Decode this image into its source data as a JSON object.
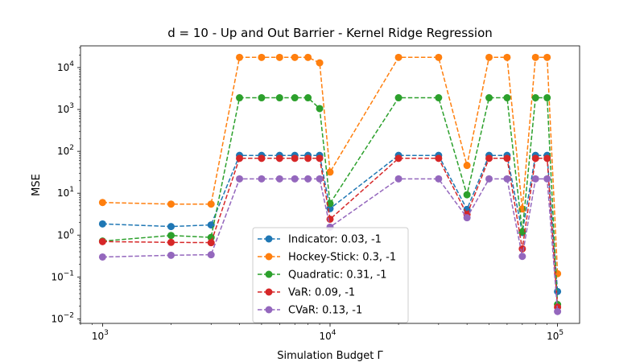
{
  "chart_data": {
    "type": "line",
    "title": "d = 10 - Up and Out Barrier - Kernel Ridge Regression",
    "xlabel": "Simulation Budget Γ",
    "ylabel": "MSE",
    "xscale": "log",
    "yscale": "log",
    "xlim": [
      800,
      125000
    ],
    "ylim": [
      0.0078,
      33000
    ],
    "x_ticks": [
      {
        "value": 1000,
        "base": "10",
        "exp": "3"
      },
      {
        "value": 10000,
        "base": "10",
        "exp": "4"
      },
      {
        "value": 100000,
        "base": "10",
        "exp": "5"
      }
    ],
    "y_ticks": [
      {
        "value": 0.01,
        "base": "10",
        "exp": "−2"
      },
      {
        "value": 0.1,
        "base": "10",
        "exp": "−1"
      },
      {
        "value": 1,
        "base": "10",
        "exp": "0"
      },
      {
        "value": 10,
        "base": "10",
        "exp": "1"
      },
      {
        "value": 100,
        "base": "10",
        "exp": "2"
      },
      {
        "value": 1000,
        "base": "10",
        "exp": "3"
      },
      {
        "value": 10000,
        "base": "10",
        "exp": "4"
      }
    ],
    "grid": false,
    "legend_position": "bottom-center",
    "x": [
      1000,
      2000,
      3000,
      4000,
      5000,
      6000,
      7000,
      8000,
      9000,
      10000,
      20000,
      30000,
      40000,
      50000,
      60000,
      70000,
      80000,
      90000,
      100000
    ],
    "series": [
      {
        "name": "Indicator: 0.03, -1",
        "color": "#1f77b4",
        "values": [
          1.85,
          1.6,
          1.75,
          80,
          80,
          80,
          80,
          80,
          80,
          4.3,
          80,
          80,
          4.1,
          80,
          80,
          1.15,
          80,
          80,
          0.045
        ]
      },
      {
        "name": "Hockey-Stick: 0.3, -1",
        "color": "#ff7f0e",
        "values": [
          6.0,
          5.5,
          5.5,
          17500,
          17500,
          17500,
          17500,
          17500,
          13000,
          32,
          17500,
          17500,
          46,
          17500,
          17500,
          4.2,
          17500,
          17500,
          0.12
        ]
      },
      {
        "name": "Quadratic: 0.31, -1",
        "color": "#2ca02c",
        "values": [
          0.72,
          0.98,
          0.88,
          1900,
          1900,
          1900,
          1900,
          1900,
          1050,
          5.7,
          1900,
          1900,
          9.2,
          1900,
          1900,
          1.2,
          1900,
          1900,
          0.022
        ]
      },
      {
        "name": "VaR: 0.09, -1",
        "color": "#d62728",
        "values": [
          0.7,
          0.67,
          0.66,
          68,
          68,
          68,
          68,
          68,
          68,
          2.4,
          68,
          68,
          3.1,
          68,
          68,
          0.47,
          68,
          68,
          0.019
        ]
      },
      {
        "name": "CVaR: 0.13, -1",
        "color": "#9467bd",
        "values": [
          0.3,
          0.33,
          0.34,
          22,
          22,
          22,
          22,
          22,
          22,
          1.55,
          22,
          22,
          2.6,
          22,
          22,
          0.31,
          22,
          22,
          0.015
        ]
      }
    ]
  }
}
